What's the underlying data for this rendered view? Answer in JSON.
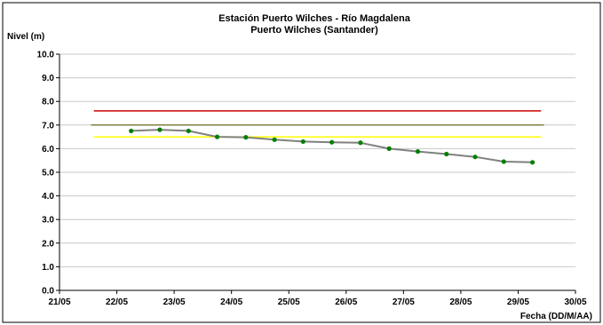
{
  "chart_data": {
    "type": "line",
    "title": "Estación Puerto Wilches - Río Magdalena",
    "subtitle": "Puerto Wilches (Santander)",
    "ylabel": "Nivel (m)",
    "xlabel": "Fecha (DD/M/AA)",
    "xlim": [
      21,
      30
    ],
    "ylim": [
      0,
      10
    ],
    "x_ticks": [
      {
        "value": 21,
        "label": "21/05"
      },
      {
        "value": 22,
        "label": "22/05"
      },
      {
        "value": 23,
        "label": "23/05"
      },
      {
        "value": 24,
        "label": "24/05"
      },
      {
        "value": 25,
        "label": "25/05"
      },
      {
        "value": 26,
        "label": "26/05"
      },
      {
        "value": 27,
        "label": "27/05"
      },
      {
        "value": 28,
        "label": "28/05"
      },
      {
        "value": 29,
        "label": "29/05"
      },
      {
        "value": 30,
        "label": "30/05"
      }
    ],
    "y_ticks": [
      "0.0",
      "1.0",
      "2.0",
      "3.0",
      "4.0",
      "5.0",
      "6.0",
      "7.0",
      "8.0",
      "9.0",
      "10.0"
    ],
    "grid": {
      "horizontal": true,
      "vertical": false
    },
    "series": [
      {
        "color": "#808080",
        "marker_color": "#008000",
        "points": [
          {
            "x": 22.25,
            "y": 6.75
          },
          {
            "x": 22.75,
            "y": 6.8
          },
          {
            "x": 23.25,
            "y": 6.75
          },
          {
            "x": 23.75,
            "y": 6.5
          },
          {
            "x": 24.25,
            "y": 6.48
          },
          {
            "x": 24.75,
            "y": 6.38
          },
          {
            "x": 25.25,
            "y": 6.3
          },
          {
            "x": 25.75,
            "y": 6.27
          },
          {
            "x": 26.25,
            "y": 6.25
          },
          {
            "x": 26.75,
            "y": 6.0
          },
          {
            "x": 27.25,
            "y": 5.88
          },
          {
            "x": 27.75,
            "y": 5.77
          },
          {
            "x": 28.25,
            "y": 5.65
          },
          {
            "x": 28.75,
            "y": 5.45
          },
          {
            "x": 29.25,
            "y": 5.42
          }
        ]
      }
    ],
    "threshold_lines": [
      {
        "y": 7.6,
        "color": "#cc0000",
        "x_from": 21.6,
        "x_to": 29.4
      },
      {
        "y": 7.0,
        "color": "#808040",
        "x_from": 21.55,
        "x_to": 29.45
      },
      {
        "y": 6.5,
        "color": "#ffff00",
        "x_from": 21.6,
        "x_to": 29.4
      }
    ]
  }
}
